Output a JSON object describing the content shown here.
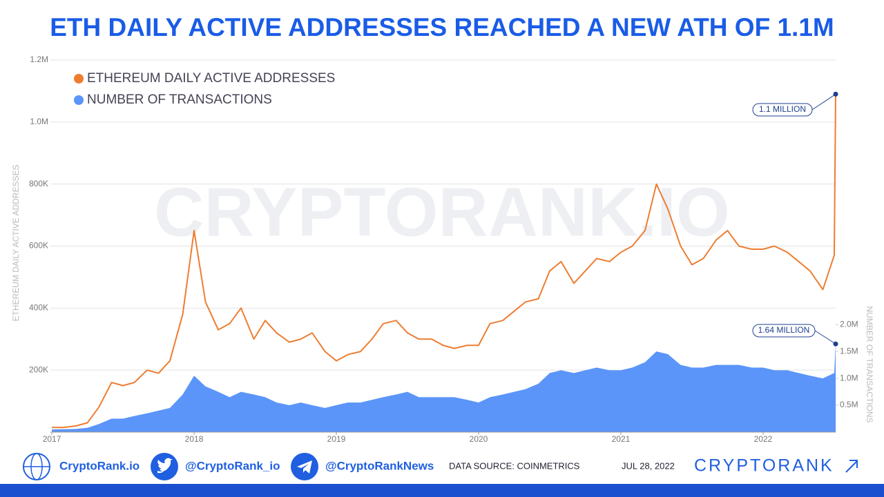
{
  "chart_data": {
    "type": "line-area",
    "title": "ETH DAILY ACTIVE ADDRESSES REACHED A NEW ATH OF 1.1M",
    "watermark": "CRYPTORANK.IO",
    "y_label": "ETHEREUM DAILY ACTIVE ADDRESSES",
    "y2_label": "NUMBER OF TRANSACTIONS",
    "x": [
      2017.0,
      2017.08,
      2017.17,
      2017.25,
      2017.33,
      2017.42,
      2017.5,
      2017.58,
      2017.67,
      2017.75,
      2017.83,
      2017.92,
      2018.0,
      2018.08,
      2018.17,
      2018.25,
      2018.33,
      2018.42,
      2018.5,
      2018.58,
      2018.67,
      2018.75,
      2018.83,
      2018.92,
      2019.0,
      2019.08,
      2019.17,
      2019.25,
      2019.33,
      2019.42,
      2019.5,
      2019.58,
      2019.67,
      2019.75,
      2019.83,
      2019.92,
      2020.0,
      2020.08,
      2020.17,
      2020.25,
      2020.33,
      2020.42,
      2020.5,
      2020.58,
      2020.67,
      2020.75,
      2020.83,
      2020.92,
      2021.0,
      2021.08,
      2021.17,
      2021.25,
      2021.33,
      2021.42,
      2021.5,
      2021.58,
      2021.67,
      2021.75,
      2021.83,
      2021.92,
      2022.0,
      2022.08,
      2022.17,
      2022.25,
      2022.33,
      2022.42,
      2022.5,
      2022.51
    ],
    "xlim": [
      2016.99,
      2022.51
    ],
    "xticks": [
      2017,
      2018,
      2019,
      2020,
      2021,
      2022
    ],
    "ylim": [
      0,
      1200000
    ],
    "yticks": [
      {
        "value": 200000,
        "label": "200K"
      },
      {
        "value": 400000,
        "label": "400K"
      },
      {
        "value": 600000,
        "label": "600K"
      },
      {
        "value": 800000,
        "label": "800K"
      },
      {
        "value": 1000000,
        "label": "1.0M"
      },
      {
        "value": 1200000,
        "label": "1.2M"
      }
    ],
    "y2lim": [
      0,
      6920000
    ],
    "y2ticks": [
      {
        "value": 500000,
        "label": "0.5M"
      },
      {
        "value": 1000000,
        "label": "1.0M"
      },
      {
        "value": 1500000,
        "label": "1.5M"
      },
      {
        "value": 2000000,
        "label": "2.0M"
      }
    ],
    "grid": true,
    "legend": "top-left",
    "series": [
      {
        "name": "ETHEREUM DAILY ACTIVE ADDRESSES",
        "color": "#ed7d31",
        "kind": "line",
        "values": [
          15000,
          15000,
          20000,
          30000,
          80000,
          160000,
          150000,
          160000,
          200000,
          190000,
          230000,
          380000,
          650000,
          420000,
          330000,
          350000,
          400000,
          300000,
          360000,
          320000,
          290000,
          300000,
          320000,
          260000,
          230000,
          250000,
          260000,
          300000,
          350000,
          360000,
          320000,
          300000,
          300000,
          280000,
          270000,
          280000,
          280000,
          350000,
          360000,
          390000,
          420000,
          430000,
          520000,
          550000,
          480000,
          520000,
          560000,
          550000,
          580000,
          600000,
          650000,
          800000,
          720000,
          600000,
          540000,
          560000,
          620000,
          650000,
          600000,
          590000,
          590000,
          600000,
          580000,
          550000,
          520000,
          460000,
          570000,
          1090000
        ]
      },
      {
        "name": "NUMBER OF TRANSACTIONS",
        "color": "#5b95f9",
        "kind": "area",
        "axis": "y2",
        "values": [
          50000,
          55000,
          60000,
          80000,
          150000,
          250000,
          250000,
          300000,
          350000,
          400000,
          450000,
          700000,
          1050000,
          850000,
          750000,
          650000,
          750000,
          700000,
          650000,
          550000,
          500000,
          550000,
          500000,
          450000,
          500000,
          550000,
          550000,
          600000,
          650000,
          700000,
          750000,
          650000,
          650000,
          650000,
          650000,
          600000,
          550000,
          650000,
          700000,
          750000,
          800000,
          900000,
          1100000,
          1150000,
          1100000,
          1150000,
          1200000,
          1150000,
          1150000,
          1200000,
          1300000,
          1500000,
          1450000,
          1250000,
          1200000,
          1200000,
          1250000,
          1250000,
          1250000,
          1200000,
          1200000,
          1150000,
          1150000,
          1100000,
          1050000,
          1000000,
          1100000,
          1640000
        ]
      }
    ],
    "annotations": [
      "1.1 MILLION",
      "1.64 MILLION"
    ]
  },
  "footer": {
    "site": "CryptoRank.io",
    "twitter": "@CryptoRank_io",
    "telegram": "@CryptoRankNews",
    "source": "DATA SOURCE: COINMETRICS",
    "date": "JUL 28, 2022",
    "brand": "CRYPTORANK"
  }
}
